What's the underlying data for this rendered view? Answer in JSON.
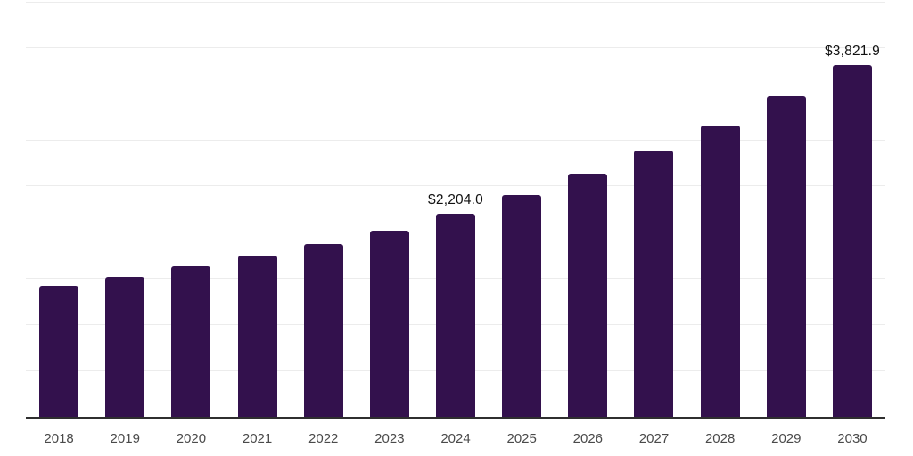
{
  "chart_data": {
    "type": "bar",
    "title": "",
    "xlabel": "",
    "ylabel": "",
    "categories": [
      "2018",
      "2019",
      "2020",
      "2021",
      "2022",
      "2023",
      "2024",
      "2025",
      "2026",
      "2027",
      "2028",
      "2029",
      "2030"
    ],
    "values": [
      1420,
      1515,
      1630,
      1755,
      1880,
      2025,
      2204.0,
      2410,
      2640,
      2895,
      3165,
      3480,
      3821.9
    ],
    "point_labels": [
      "",
      "",
      "",
      "",
      "",
      "",
      "$2,204.0",
      "",
      "",
      "",
      "",
      "",
      "$3,821.9"
    ],
    "ylim": [
      0,
      4545
    ],
    "gridline_step": 500,
    "grid": "horizontal-only",
    "legend_position": "none",
    "colors": {
      "bar": "#33114d",
      "gridline": "#ececec",
      "axis_line": "#2f2f2f",
      "tick_label": "#4a4a4a",
      "value_label": "#111111",
      "background": "#ffffff"
    }
  }
}
